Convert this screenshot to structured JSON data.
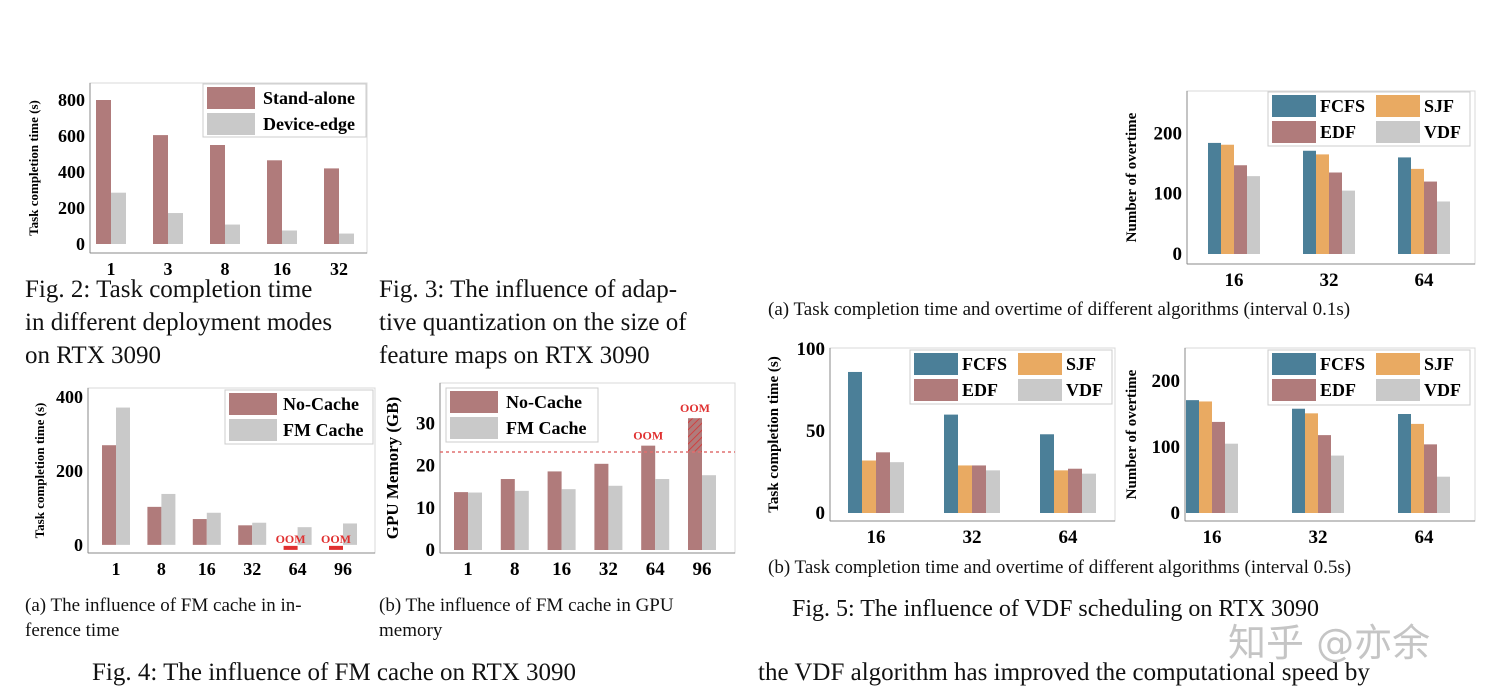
{
  "captions": {
    "fig2": [
      "Fig. 2: Task completion time",
      "in different deployment modes",
      "on RTX 3090"
    ],
    "fig3": [
      "Fig. 3: The influence of adap-",
      "tive quantization on the size of",
      "feature maps on RTX 3090"
    ],
    "fig4a": [
      "(a) The influence of FM cache in in-",
      "ference time"
    ],
    "fig4b": [
      "(b) The influence of FM cache in GPU",
      "memory"
    ],
    "fig4": "Fig. 4: The influence of FM cache on RTX 3090",
    "fig5a": "(a) Task completion time and overtime of different algorithms (interval 0.1s)",
    "fig5b": "(b) Task completion time and overtime of different algorithms (interval 0.5s)",
    "fig5": "Fig. 5: The influence of VDF scheduling on RTX 3090",
    "body_text": "the VDF algorithm has improved the computational speed by"
  },
  "watermark": "知乎 @亦余",
  "colors": {
    "rose": "#b07b7b",
    "gray": "#c9c9c9",
    "blue": "#4b7f98",
    "orange": "#e9aa62",
    "oom": "#e03030"
  },
  "chart_data": [
    {
      "id": "fig2",
      "type": "bar",
      "ylabel": "Task completion time (s)",
      "categories": [
        "1",
        "3",
        "8",
        "16",
        "32"
      ],
      "ylim": [
        0,
        900
      ],
      "yticks": [
        0,
        200,
        400,
        600,
        800
      ],
      "legend": "top-right",
      "series": [
        {
          "name": "Stand-alone",
          "color": "#b07b7b",
          "values": [
            800,
            605,
            550,
            465,
            420
          ]
        },
        {
          "name": "Device-edge",
          "color": "#c9c9c9",
          "values": [
            285,
            172,
            108,
            75,
            58
          ]
        }
      ]
    },
    {
      "id": "fig4a",
      "type": "bar",
      "ylabel": "Task completion time (s)",
      "categories": [
        "1",
        "8",
        "16",
        "32",
        "64",
        "96"
      ],
      "ylim": [
        -22,
        425
      ],
      "yticks": [
        0,
        200,
        400
      ],
      "legend": "top-right",
      "series": [
        {
          "name": "No-Cache",
          "color": "#b07b7b",
          "values": [
            270,
            103,
            70,
            53,
            null,
            null
          ]
        },
        {
          "name": "FM Cache",
          "color": "#c9c9c9",
          "values": [
            372,
            138,
            87,
            60,
            48,
            58
          ]
        }
      ],
      "annotations": [
        {
          "category": "64",
          "text": "OOM"
        },
        {
          "category": "96",
          "text": "OOM"
        }
      ]
    },
    {
      "id": "fig4b",
      "type": "bar",
      "ylabel": "GPU Memory (GB)",
      "categories": [
        "1",
        "8",
        "16",
        "32",
        "64",
        "96"
      ],
      "ylim": [
        0,
        40
      ],
      "yticks": [
        0,
        10,
        20,
        30
      ],
      "legend": "top-left",
      "threshold": 23.2,
      "series": [
        {
          "name": "No-Cache",
          "color": "#b07b7b",
          "values": [
            13.7,
            16.8,
            18.6,
            20.4,
            24.7,
            31.2
          ]
        },
        {
          "name": "FM Cache",
          "color": "#c9c9c9",
          "values": [
            13.6,
            14.0,
            14.4,
            15.2,
            16.8,
            17.7
          ]
        }
      ],
      "annotations": [
        {
          "category": "64",
          "text": "OOM"
        },
        {
          "category": "96",
          "text": "OOM"
        }
      ]
    },
    {
      "id": "fig5a",
      "type": "bar",
      "ylabel": "Number of overtime",
      "categories": [
        "16",
        "32",
        "64"
      ],
      "ylim": [
        0,
        270
      ],
      "yticks": [
        0,
        100,
        200
      ],
      "legend": "top-right",
      "series": [
        {
          "name": "FCFS",
          "color": "#4b7f98",
          "values": [
            184,
            171,
            160
          ]
        },
        {
          "name": "SJF",
          "color": "#e9aa62",
          "values": [
            181,
            165,
            141
          ]
        },
        {
          "name": "EDF",
          "color": "#b07b7b",
          "values": [
            147,
            135,
            120
          ]
        },
        {
          "name": "VDF",
          "color": "#c9c9c9",
          "values": [
            129,
            105,
            87
          ]
        }
      ]
    },
    {
      "id": "fig5b-time",
      "type": "bar",
      "ylabel": "Task completion time (s)",
      "categories": [
        "16",
        "32",
        "64"
      ],
      "ylim": [
        0,
        100
      ],
      "yticks": [
        0,
        50,
        100
      ],
      "legend": "top-right",
      "series": [
        {
          "name": "FCFS",
          "color": "#4b7f98",
          "values": [
            86,
            60,
            48
          ]
        },
        {
          "name": "SJF",
          "color": "#e9aa62",
          "values": [
            32,
            29,
            26
          ]
        },
        {
          "name": "EDF",
          "color": "#b07b7b",
          "values": [
            37,
            29,
            27
          ]
        },
        {
          "name": "VDF",
          "color": "#c9c9c9",
          "values": [
            31,
            26,
            24
          ]
        }
      ]
    },
    {
      "id": "fig5b-overtime",
      "type": "bar",
      "ylabel": "Number of overtime",
      "categories": [
        "16",
        "32",
        "64"
      ],
      "ylim": [
        0,
        250
      ],
      "yticks": [
        0,
        100,
        200
      ],
      "legend": "top-right",
      "series": [
        {
          "name": "FCFS",
          "color": "#4b7f98",
          "values": [
            171,
            158,
            150
          ]
        },
        {
          "name": "SJF",
          "color": "#e9aa62",
          "values": [
            169,
            151,
            135
          ]
        },
        {
          "name": "EDF",
          "color": "#b07b7b",
          "values": [
            138,
            118,
            104
          ]
        },
        {
          "name": "VDF",
          "color": "#c9c9c9",
          "values": [
            105,
            87,
            55
          ]
        }
      ]
    }
  ]
}
